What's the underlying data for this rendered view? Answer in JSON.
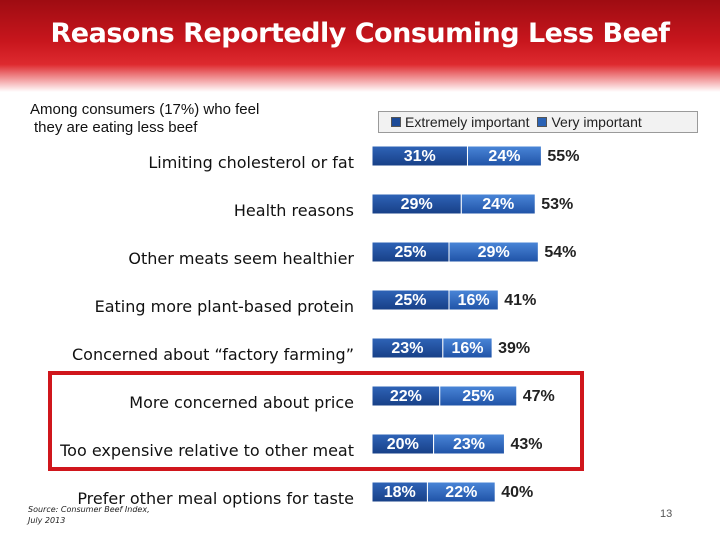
{
  "slide": {
    "title": "Reasons Reportedly Consuming Less Beef",
    "subtitle_line1": "Among consumers (17%) who feel",
    "subtitle_line2": "they are eating less beef",
    "source_line1": "Source: Consumer Beef Index,",
    "source_line2": "July 2013",
    "page_number": "13",
    "highlighted_categories": [
      "More concerned about price",
      "Too expensive relative to other meat"
    ]
  },
  "chart_data": {
    "type": "bar",
    "orientation": "horizontal",
    "stacked": true,
    "categories": [
      "Limiting cholesterol or fat",
      "Health reasons",
      "Other meats seem healthier",
      "Eating more plant-based protein",
      "Concerned about “factory farming”",
      "More concerned about price",
      "Too expensive relative to other meat",
      "Prefer other meal options for taste"
    ],
    "series": [
      {
        "name": "Extremely important",
        "values": [
          31,
          29,
          25,
          25,
          23,
          22,
          20,
          18
        ],
        "labels": [
          "31%",
          "29%",
          "25%",
          "25%",
          "23%",
          "22%",
          "20%",
          "18%"
        ],
        "color": "#1c4a97"
      },
      {
        "name": "Very important",
        "values": [
          24,
          24,
          29,
          16,
          16,
          25,
          23,
          22
        ],
        "labels": [
          "24%",
          "24%",
          "29%",
          "16%",
          "16%",
          "25%",
          "23%",
          "22%"
        ],
        "color": "#2b63b6"
      }
    ],
    "totals": [
      55,
      53,
      54,
      41,
      39,
      47,
      43,
      40
    ],
    "total_labels": [
      "55%",
      "53%",
      "54%",
      "41%",
      "39%",
      "47%",
      "43%",
      "40%"
    ],
    "legend_position": "top-right",
    "grid": false
  }
}
